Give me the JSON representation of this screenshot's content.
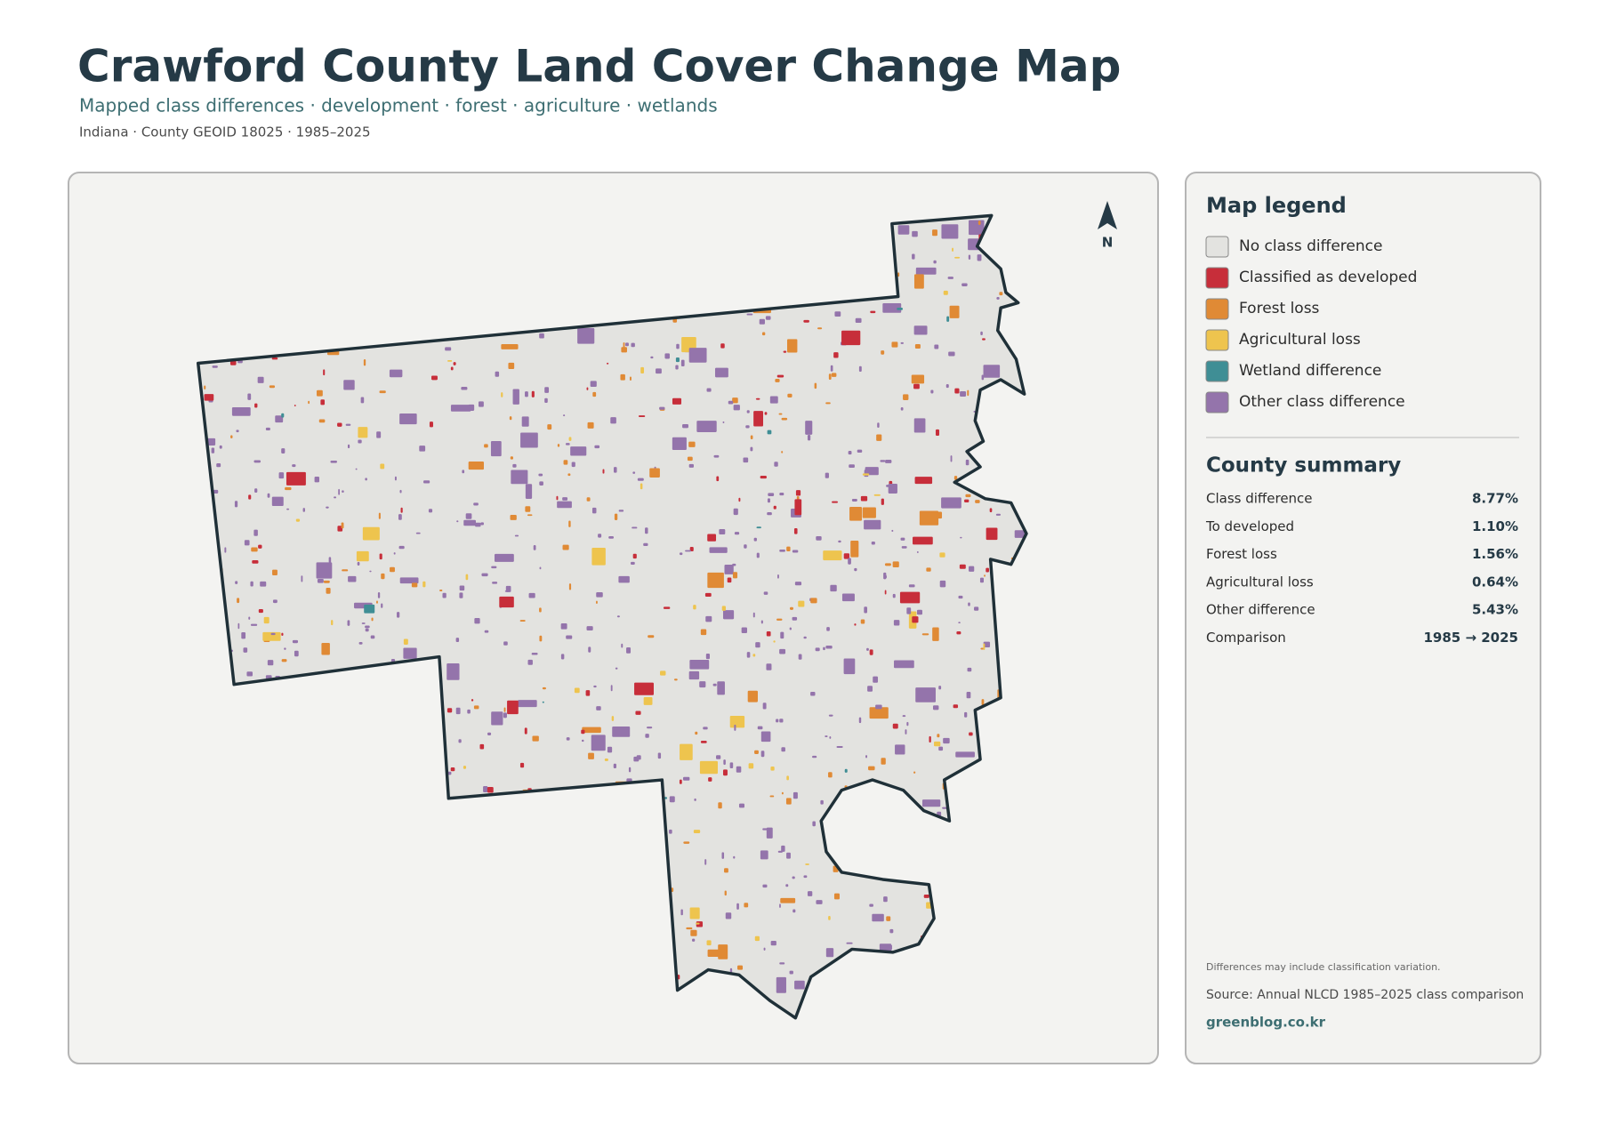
{
  "header": {
    "title": "Crawford County Land Cover Change Map",
    "subtitle": "Mapped class differences · development · forest · agriculture · wetlands",
    "meta": "Indiana · County GEOID 18025 · 1985–2025"
  },
  "map": {
    "north_label": "N"
  },
  "legend": {
    "title": "Map legend",
    "items": [
      {
        "label": "No class difference",
        "color": "#e3e3e0"
      },
      {
        "label": "Classified as developed",
        "color": "#c72e3a"
      },
      {
        "label": "Forest loss",
        "color": "#e08a35"
      },
      {
        "label": "Agricultural loss",
        "color": "#eec44e"
      },
      {
        "label": "Wetland difference",
        "color": "#3f8e95"
      },
      {
        "label": "Other class difference",
        "color": "#9474ab"
      }
    ]
  },
  "summary": {
    "title": "County summary",
    "rows": [
      [
        "Class difference",
        "8.77%"
      ],
      [
        "To developed",
        "1.10%"
      ],
      [
        "Forest loss",
        "1.56%"
      ],
      [
        "Agricultural loss",
        "0.64%"
      ],
      [
        "Other difference",
        "5.43%"
      ],
      [
        "Comparison",
        "1985 → 2025"
      ]
    ]
  },
  "footer": {
    "note": "Differences may include classification variation.",
    "source": "Source: Annual NLCD 1985–2025 class comparison",
    "brand": "greenblog.co.kr"
  }
}
